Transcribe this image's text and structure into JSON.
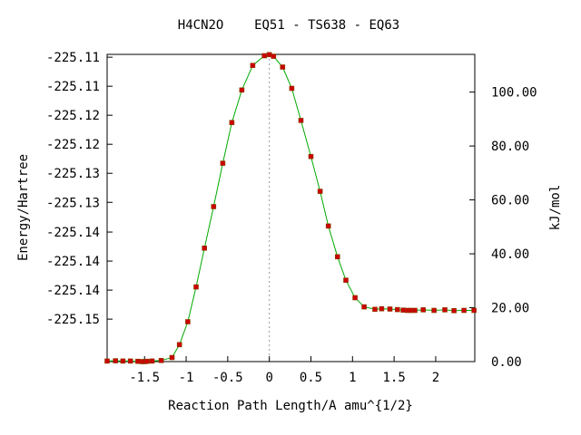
{
  "chart_data": {
    "type": "line",
    "title": "H4CN2O    EQ51 - TS638 - EQ63",
    "xlabel": "Reaction Path Length/A amu^{1/2}",
    "ylabel": "Energy/Hartree",
    "y2label": "kJ/mol",
    "xlim": [
      -1.95,
      2.47
    ],
    "ylim": [
      -225.1568,
      -225.1134
    ],
    "y2lim": [
      0.0,
      114.0
    ],
    "x_ticks": [
      -1.5,
      -1,
      -0.5,
      0,
      0.5,
      1,
      1.5,
      2
    ],
    "x_tick_labels": [
      "-1.5",
      "-1",
      "-0.5",
      "0",
      "0.5",
      "1",
      "1.5",
      "2"
    ],
    "y_ticks": [
      -225.1138,
      -225.1179,
      -225.122,
      -225.1261,
      -225.1302,
      -225.1343,
      -225.1385,
      -225.1426,
      -225.1467,
      -225.1508
    ],
    "y_tick_labels": [
      "-225.11",
      "-225.11",
      "-225.12",
      "-225.12",
      "-225.13",
      "-225.13",
      "-225.14",
      "-225.14",
      "-225.14",
      "-225.15"
    ],
    "y2_ticks": [
      0,
      20,
      40,
      60,
      80,
      100
    ],
    "y2_tick_labels": [
      "0.00",
      "20.00",
      "40.00",
      "60.00",
      "80.00",
      "100.00"
    ],
    "ts_x": 0.0,
    "grid": false,
    "colors": {
      "line": "#00aa00",
      "points": "#cc0000",
      "point_outline": "#884400",
      "ts_line": "#999999"
    },
    "series": [
      {
        "values": [
          [
            -1.95,
            0.2
          ],
          [
            -1.85,
            0.3
          ],
          [
            -1.76,
            0.2
          ],
          [
            -1.67,
            0.2
          ],
          [
            -1.58,
            0.1
          ],
          [
            -1.53,
            0.0
          ],
          [
            -1.5,
            0.0
          ],
          [
            -1.47,
            0.1
          ],
          [
            -1.41,
            0.2
          ],
          [
            -1.3,
            0.4
          ],
          [
            -1.17,
            1.5
          ],
          [
            -1.08,
            6.3
          ],
          [
            -0.98,
            14.8
          ],
          [
            -0.88,
            27.7
          ],
          [
            -0.78,
            42.1
          ],
          [
            -0.67,
            57.5
          ],
          [
            -0.56,
            73.6
          ],
          [
            -0.45,
            88.7
          ],
          [
            -0.33,
            100.8
          ],
          [
            -0.2,
            109.9
          ],
          [
            -0.06,
            113.5
          ],
          [
            0.0,
            113.9
          ],
          [
            0.05,
            113.3
          ],
          [
            0.16,
            109.3
          ],
          [
            0.27,
            101.4
          ],
          [
            0.38,
            89.5
          ],
          [
            0.5,
            76.1
          ],
          [
            0.61,
            63.2
          ],
          [
            0.71,
            50.3
          ],
          [
            0.82,
            38.9
          ],
          [
            0.92,
            30.2
          ],
          [
            1.03,
            23.7
          ],
          [
            1.14,
            20.3
          ],
          [
            1.27,
            19.4
          ],
          [
            1.35,
            19.6
          ],
          [
            1.45,
            19.5
          ],
          [
            1.54,
            19.3
          ],
          [
            1.61,
            19.1
          ],
          [
            1.66,
            19.0
          ],
          [
            1.7,
            19.0
          ],
          [
            1.75,
            19.0
          ],
          [
            1.85,
            19.2
          ],
          [
            1.98,
            19.0
          ],
          [
            2.11,
            19.2
          ],
          [
            2.22,
            18.9
          ],
          [
            2.34,
            19.0
          ],
          [
            2.46,
            19.0
          ]
        ]
      }
    ]
  }
}
